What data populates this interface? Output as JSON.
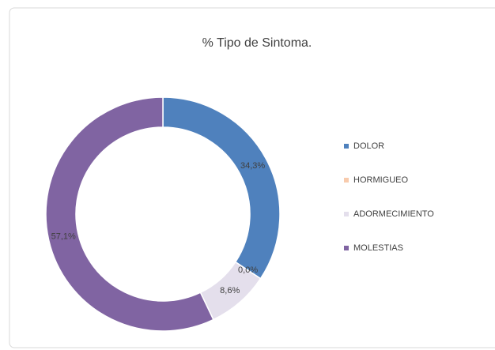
{
  "chart_data": {
    "type": "doughnut",
    "title": "% Tipo de Sintoma.",
    "categories": [
      "DOLOR",
      "HORMIGUEO",
      "ADORMECIMIENTO",
      "MOLESTIAS"
    ],
    "values": [
      34.3,
      0,
      8.6,
      57.1
    ],
    "value_labels": [
      "34,3%",
      "0,0%",
      "8,6%",
      "57,1%"
    ],
    "colors": [
      "#4f81bd",
      "#f8cbad",
      "#e4dfec",
      "#8064a2"
    ],
    "legend": "right"
  }
}
